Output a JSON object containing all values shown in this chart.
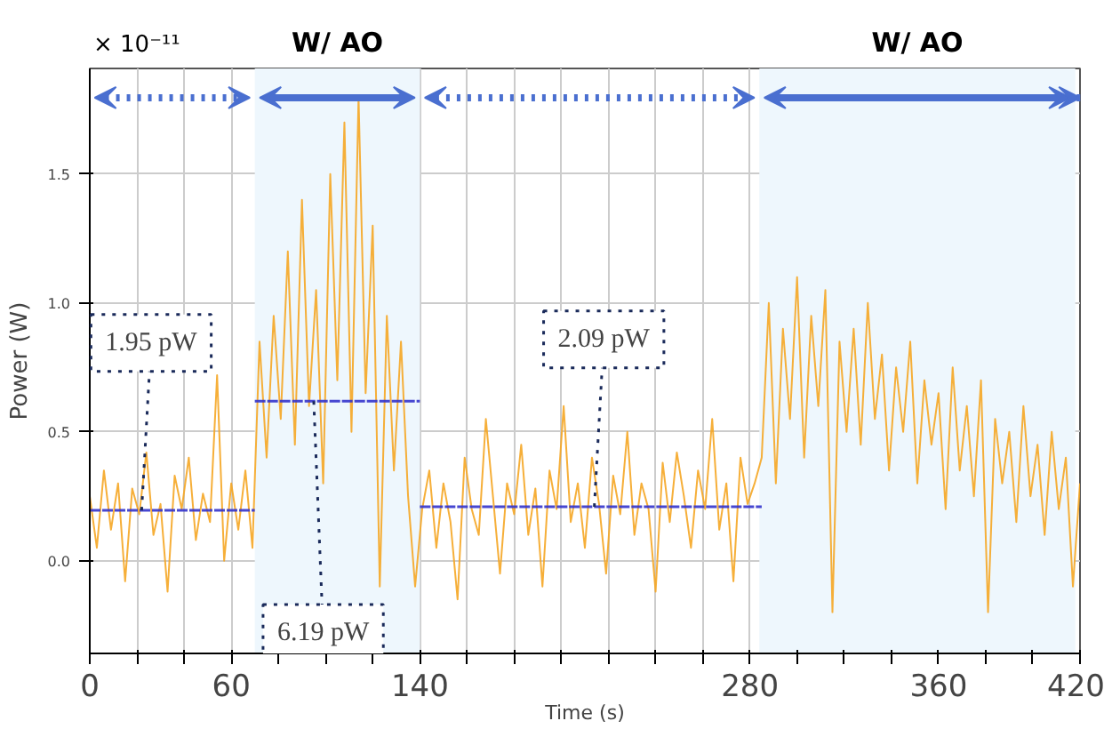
{
  "chart_data": {
    "type": "line",
    "xlabel": "Time (s)",
    "ylabel": "Power (W)",
    "annotations": [
      "× 10⁻¹¹",
      {
        "text": "1.95 pW",
        "x": 22,
        "y": 0.195
      },
      {
        "text": "6.19 pW",
        "x": 95,
        "y": 0.619
      },
      {
        "text": "2.09 pW",
        "x": 214,
        "y": 0.209
      }
    ],
    "xlim": [
      0,
      420
    ],
    "ylim": [
      -0.36,
      1.91
    ],
    "xticks": [
      0,
      {
        "value": 20,
        "label": null
      },
      {
        "value": 40,
        "label": null
      },
      60,
      {
        "value": 80,
        "label": null
      },
      {
        "value": 100,
        "label": null
      },
      {
        "value": 120,
        "label": null
      },
      140,
      {
        "value": 160,
        "label": null
      },
      {
        "value": 180,
        "label": null
      },
      {
        "value": 200,
        "label": null
      },
      {
        "value": 220,
        "label": null
      },
      {
        "value": 240,
        "label": null
      },
      {
        "value": 260,
        "label": null
      },
      280,
      {
        "value": 300,
        "label": null
      },
      {
        "value": 320,
        "label": null
      },
      {
        "value": 340,
        "label": null
      },
      360,
      {
        "value": 380,
        "label": null
      },
      {
        "value": 400,
        "label": null
      },
      420
    ],
    "yticks": [
      {
        "value": 0,
        "label": "0.0"
      },
      {
        "value": 0.5,
        "label": "0.5"
      },
      {
        "value": 1,
        "label": "1.0"
      },
      {
        "value": 1.5,
        "label": "1.5"
      }
    ],
    "grid": true,
    "bands": [
      {
        "axis": "x",
        "from": 70,
        "to": 140,
        "label": "W/ AO",
        "color": "#eef7fd"
      },
      {
        "axis": "x",
        "from": 284,
        "to": 418,
        "label": "W/ AO",
        "color": "#eef7fd"
      }
    ],
    "series": [
      {
        "color": "#f5a623",
        "line_style": "solid",
        "x": [
          0,
          3,
          6,
          9,
          12,
          15,
          18,
          21,
          24,
          27,
          30,
          33,
          36,
          39,
          42,
          45,
          48,
          51,
          54,
          57,
          60,
          63,
          66,
          69,
          72,
          75,
          78,
          81,
          84,
          87,
          90,
          93,
          96,
          99,
          102,
          105,
          108,
          111,
          114,
          117,
          120,
          123,
          126,
          129,
          132,
          135,
          138,
          141,
          144,
          147,
          150,
          153,
          156,
          159,
          162,
          165,
          168,
          171,
          174,
          177,
          180,
          183,
          186,
          189,
          192,
          195,
          198,
          201,
          204,
          207,
          210,
          213,
          216,
          219,
          222,
          225,
          228,
          231,
          234,
          237,
          240,
          243,
          246,
          249,
          252,
          255,
          258,
          261,
          264,
          267,
          270,
          273,
          276,
          279,
          282,
          285,
          288,
          291,
          294,
          297,
          300,
          303,
          306,
          309,
          312,
          315,
          318,
          321,
          324,
          327,
          330,
          333,
          336,
          339,
          342,
          345,
          348,
          351,
          354,
          357,
          360,
          363,
          366,
          369,
          372,
          375,
          378,
          381,
          384,
          387,
          390,
          393,
          396,
          399,
          402,
          405,
          408,
          411,
          414,
          417,
          420
        ],
        "values": [
          0.25,
          0.05,
          0.35,
          0.12,
          0.3,
          -0.08,
          0.28,
          0.18,
          0.42,
          0.1,
          0.22,
          -0.12,
          0.33,
          0.2,
          0.4,
          0.08,
          0.26,
          0.15,
          0.72,
          0.0,
          0.3,
          0.12,
          0.35,
          0.05,
          0.85,
          0.4,
          0.95,
          0.55,
          1.2,
          0.45,
          1.4,
          0.6,
          1.05,
          0.3,
          1.5,
          0.7,
          1.7,
          0.5,
          1.8,
          0.65,
          1.3,
          -0.1,
          0.95,
          0.35,
          0.85,
          0.25,
          -0.1,
          0.2,
          0.35,
          0.05,
          0.3,
          0.15,
          -0.15,
          0.4,
          0.2,
          0.1,
          0.55,
          0.25,
          -0.05,
          0.3,
          0.18,
          0.45,
          0.1,
          0.28,
          -0.1,
          0.35,
          0.2,
          0.6,
          0.15,
          0.3,
          0.05,
          0.4,
          0.22,
          -0.05,
          0.33,
          0.18,
          0.5,
          0.1,
          0.3,
          0.2,
          -0.12,
          0.38,
          0.15,
          0.42,
          0.25,
          0.05,
          0.35,
          0.2,
          0.55,
          0.12,
          0.3,
          -0.08,
          0.4,
          0.22,
          0.3,
          0.4,
          1.0,
          0.3,
          0.9,
          0.55,
          1.1,
          0.4,
          0.95,
          0.6,
          1.05,
          -0.2,
          0.85,
          0.5,
          0.9,
          0.45,
          1.0,
          0.55,
          0.8,
          0.35,
          0.75,
          0.5,
          0.85,
          0.3,
          0.7,
          0.45,
          0.65,
          0.2,
          0.75,
          0.35,
          0.6,
          0.25,
          0.7,
          -0.2,
          0.55,
          0.3,
          0.5,
          0.15,
          0.6,
          0.25,
          0.45,
          0.1,
          0.5,
          0.2,
          0.4,
          -0.1,
          0.3
        ]
      },
      {
        "color": "#3333cc",
        "line_style": "dashed",
        "x": [
          0,
          70
        ],
        "values": [
          0.195,
          0.195
        ]
      },
      {
        "color": "#3333cc",
        "line_style": "dashed",
        "x": [
          70,
          140
        ],
        "values": [
          0.619,
          0.619
        ]
      },
      {
        "color": "#3333cc",
        "line_style": "dashed",
        "x": [
          140,
          285
        ],
        "values": [
          0.209,
          0.209
        ]
      }
    ]
  }
}
